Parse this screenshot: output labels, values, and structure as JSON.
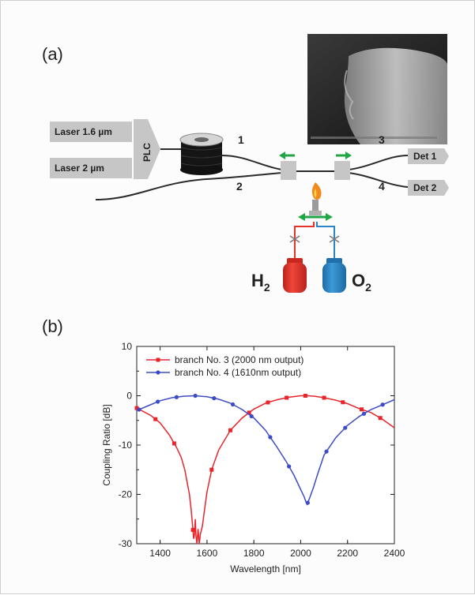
{
  "panel_a_label": "(a)",
  "panel_b_label": "(b)",
  "setup": {
    "laser1": "Laser 1.6 µm",
    "laser2": "Laser 2 µm",
    "plc": "PLC",
    "port1": "1",
    "port2": "2",
    "port3": "3",
    "port4": "4",
    "det1": "Det 1",
    "det2": "Det 2",
    "h2_main": "H",
    "h2_sub": "2",
    "o2_main": "O",
    "o2_sub": "2",
    "colors": {
      "box": "#c6c6c6",
      "arrow": "#22a645",
      "h2_tank": "#e63329",
      "o2_tank": "#2b86c8",
      "flame": "#f08a1c"
    }
  },
  "chart_data": {
    "type": "line",
    "xlabel": "Wavelength [nm]",
    "ylabel": "Coupling Ratio [dB]",
    "xlim": [
      1300,
      2400
    ],
    "ylim": [
      -30,
      10
    ],
    "xticks": [
      1400,
      1600,
      1800,
      2000,
      2200,
      2400
    ],
    "yticks": [
      -30,
      -20,
      -10,
      0,
      10
    ],
    "legend_position": "top-left",
    "series": [
      {
        "name": "branch No. 3 (2000 nm output)",
        "color": "#e8252b",
        "marker": "square",
        "x": [
          1300,
          1360,
          1400,
          1440,
          1470,
          1490,
          1505,
          1515,
          1525,
          1532,
          1538,
          1543,
          1547,
          1550,
          1553,
          1557,
          1562,
          1567,
          1572,
          1580,
          1590,
          1600,
          1620,
          1650,
          1700,
          1750,
          1800,
          1850,
          1900,
          1950,
          2000,
          2030,
          2060,
          2100,
          2150,
          2200,
          2250,
          2300,
          2350,
          2400
        ],
        "y": [
          -2.5,
          -4.0,
          -5.5,
          -8.0,
          -10.5,
          -12.5,
          -15.0,
          -17.5,
          -20.0,
          -23.0,
          -26.0,
          -29.0,
          -28.0,
          -25.0,
          -28.5,
          -30.0,
          -27.0,
          -30.0,
          -28.0,
          -26.5,
          -23.0,
          -19.5,
          -15.0,
          -11.0,
          -7.0,
          -4.5,
          -2.7,
          -1.5,
          -0.8,
          -0.3,
          0.0,
          0.0,
          -0.1,
          -0.4,
          -0.9,
          -1.6,
          -2.6,
          -3.4,
          -4.8,
          -6.5
        ],
        "marker_x": [
          1300,
          1380,
          1460,
          1540,
          1620,
          1700,
          1780,
          1860,
          1940,
          2020,
          2100,
          2180,
          2260,
          2340
        ]
      },
      {
        "name": "branch No. 4 (1610nm output)",
        "color": "#3d4cc5",
        "marker": "circle",
        "x": [
          1300,
          1350,
          1400,
          1450,
          1500,
          1550,
          1600,
          1650,
          1700,
          1750,
          1800,
          1850,
          1900,
          1940,
          1970,
          1990,
          2005,
          2015,
          2022,
          2027,
          2032,
          2040,
          2055,
          2075,
          2100,
          2150,
          2200,
          2250,
          2300,
          2350,
          2400
        ],
        "y": [
          -3.0,
          -2.0,
          -1.0,
          -0.4,
          -0.1,
          0.0,
          -0.2,
          -0.7,
          -1.5,
          -2.8,
          -4.5,
          -7.0,
          -10.5,
          -13.5,
          -16.0,
          -18.0,
          -19.5,
          -20.5,
          -21.5,
          -22.0,
          -21.5,
          -20.5,
          -18.5,
          -15.5,
          -12.0,
          -8.5,
          -6.0,
          -4.2,
          -2.8,
          -1.8,
          -0.8
        ],
        "marker_x": [
          1310,
          1390,
          1470,
          1550,
          1630,
          1710,
          1790,
          1870,
          1950,
          2030,
          2110,
          2190,
          2270,
          2350
        ]
      }
    ]
  }
}
